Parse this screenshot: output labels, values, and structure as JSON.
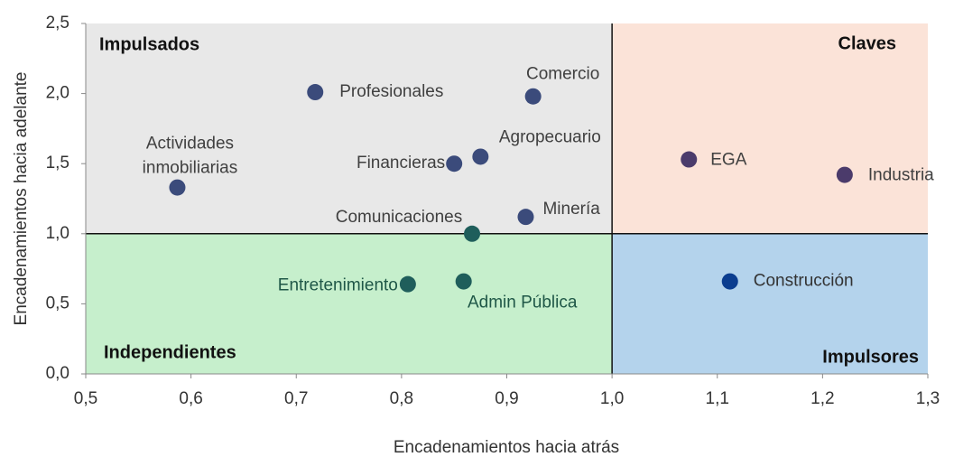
{
  "chart_data": {
    "type": "scatter",
    "x_label": "Encadenamientos hacia atrás",
    "y_label": "Encadenamientos hacia adelante",
    "xlim": [
      0.5,
      1.3
    ],
    "ylim": [
      0,
      2.5
    ],
    "xticks": [
      {
        "value": 0.5,
        "label": "0,5"
      },
      {
        "value": 0.6,
        "label": "0,6"
      },
      {
        "value": 0.7,
        "label": "0,7"
      },
      {
        "value": 0.8,
        "label": "0,8"
      },
      {
        "value": 0.9,
        "label": "0,9"
      },
      {
        "value": 1.0,
        "label": "1,0"
      },
      {
        "value": 1.1,
        "label": "1,1"
      },
      {
        "value": 1.2,
        "label": "1,2"
      },
      {
        "value": 1.3,
        "label": "1,3"
      }
    ],
    "yticks": [
      {
        "value": 0,
        "label": "0,0"
      },
      {
        "value": 0.5,
        "label": "0,5"
      },
      {
        "value": 1.0,
        "label": "1,0"
      },
      {
        "value": 1.5,
        "label": "1,5"
      },
      {
        "value": 2.0,
        "label": "2,0"
      },
      {
        "value": 2.5,
        "label": "2,5"
      }
    ],
    "x_split": 1,
    "y_split": 1,
    "quadrants": {
      "top_left": "Impulsados",
      "top_right": "Claves",
      "bottom_left": "Independientes",
      "bottom_right": "Impulsores"
    },
    "quadrant_colors": {
      "top_left": "#e8e8e8",
      "top_right": "#fbe3d8",
      "bottom_left": "#c6efcc",
      "bottom_right": "#b4d3ec"
    },
    "points": [
      {
        "name": "Profesionales",
        "x": 0.718,
        "y": 2.01,
        "color": "#3b4b7b"
      },
      {
        "name": "Comercio",
        "x": 0.925,
        "y": 1.98,
        "color": "#3b4b7b"
      },
      {
        "name": "Agropecuario",
        "x": 0.875,
        "y": 1.55,
        "color": "#3b4b7b"
      },
      {
        "name": "Financieras",
        "x": 0.85,
        "y": 1.5,
        "color": "#3b4b7b"
      },
      {
        "name": "Actividades inmobiliarias",
        "x": 0.587,
        "y": 1.33,
        "color": "#3b4b7b"
      },
      {
        "name": "Minería",
        "x": 0.918,
        "y": 1.12,
        "color": "#3b4b7b"
      },
      {
        "name": "Comunicaciones",
        "x": 0.867,
        "y": 1.0,
        "color": "#1f5e5b"
      },
      {
        "name": "Entretenimiento",
        "x": 0.806,
        "y": 0.64,
        "color": "#1f5e5b"
      },
      {
        "name": "Admin Pública",
        "x": 0.859,
        "y": 0.66,
        "color": "#1f5e5b"
      },
      {
        "name": "EGA",
        "x": 1.073,
        "y": 1.53,
        "color": "#4b3b6b"
      },
      {
        "name": "Industria",
        "x": 1.221,
        "y": 1.42,
        "color": "#4b3b6b"
      },
      {
        "name": "Construcción",
        "x": 1.112,
        "y": 0.66,
        "color": "#0b3d8f"
      }
    ]
  }
}
